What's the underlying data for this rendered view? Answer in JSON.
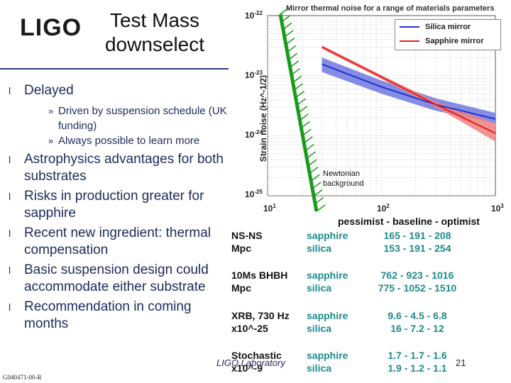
{
  "logo": "LIGO",
  "title": [
    "Test Mass",
    "downselect"
  ],
  "bullets": [
    {
      "text": "Delayed",
      "subs": [
        "Driven by suspension schedule (UK funding)",
        "Always possible to learn more"
      ]
    },
    {
      "text": "Astrophysics advantages for both substrates"
    },
    {
      "text": "Risks in production greater for sapphire"
    },
    {
      "text": "Recent new ingredient: thermal compensation"
    },
    {
      "text": "Basic suspension design could accommodate either substrate"
    },
    {
      "text": "Recommendation in coming months"
    }
  ],
  "bullet_glyph": "l",
  "sub_glyph": "»",
  "chart_data": {
    "type": "line",
    "title": "Mirror thermal noise for a range of materials parameters",
    "ylabel": "Strain noise (Hz^-1/2)",
    "xscale": "log",
    "yscale": "log",
    "xlim": [
      10,
      1000
    ],
    "ylim": [
      1e-25,
      1e-22
    ],
    "y_ticks": [
      "10^-22",
      "10^-23",
      "10^-24",
      "10^-25"
    ],
    "x_ticks": [
      "10^1",
      "10^2",
      "10^3"
    ],
    "grid": true,
    "legend_position": "top-right",
    "series": [
      {
        "name": "Silica mirror",
        "color": "#2233cc",
        "band_color": "#6e78e0",
        "x": [
          30,
          100,
          300,
          1000
        ],
        "y": [
          1.55e-23,
          6.5e-24,
          3.3e-24,
          1.9e-24
        ],
        "band_low": [
          1.15e-23,
          5e-24,
          2.6e-24,
          1.6e-24
        ],
        "band_high": [
          2e-23,
          8.3e-24,
          4.2e-24,
          2.4e-24
        ]
      },
      {
        "name": "Sapphire mirror",
        "color": "#e02020",
        "band_color": "#f08080",
        "x": [
          30,
          100,
          300,
          1000
        ],
        "y": [
          3e-23,
          9.5e-24,
          3.3e-24,
          1.1e-24
        ],
        "band_low": [
          2.8e-23,
          8.8e-24,
          3e-24,
          8e-25
        ],
        "band_high": [
          3.2e-23,
          1.02e-23,
          3.7e-24,
          1.6e-24
        ]
      }
    ],
    "annotation": "Newtonian background"
  },
  "newton_label": [
    "Newtonian",
    "background"
  ],
  "table": {
    "header": "pessimist - baseline - optimist",
    "rows": [
      {
        "source": [
          "NS-NS",
          "Mpc"
        ],
        "materials": [
          "sapphire",
          "silica"
        ],
        "values": [
          "165 - 191 - 208",
          "153 - 191 - 254"
        ]
      },
      {
        "source": [
          "10Ms BHBH",
          "Mpc"
        ],
        "materials": [
          "sapphire",
          "silica"
        ],
        "values": [
          "762 - 923 - 1016",
          "775 - 1052 - 1510"
        ]
      },
      {
        "source": [
          "XRB, 730 Hz",
          "x10^-25"
        ],
        "materials": [
          "sapphire",
          "silica"
        ],
        "values": [
          "9.6 - 4.5 - 6.8",
          "16 - 7.2 - 12"
        ]
      },
      {
        "source": [
          "Stochastic",
          "x10^-9"
        ],
        "materials": [
          "sapphire",
          "silica"
        ],
        "values": [
          "1.7 - 1.7 - 1.6",
          "1.9 - 1.2 - 1.1"
        ]
      }
    ]
  },
  "footer": {
    "lab": "LIGO Laboratory",
    "page": "21",
    "doc_id": "G040471-00-R"
  }
}
